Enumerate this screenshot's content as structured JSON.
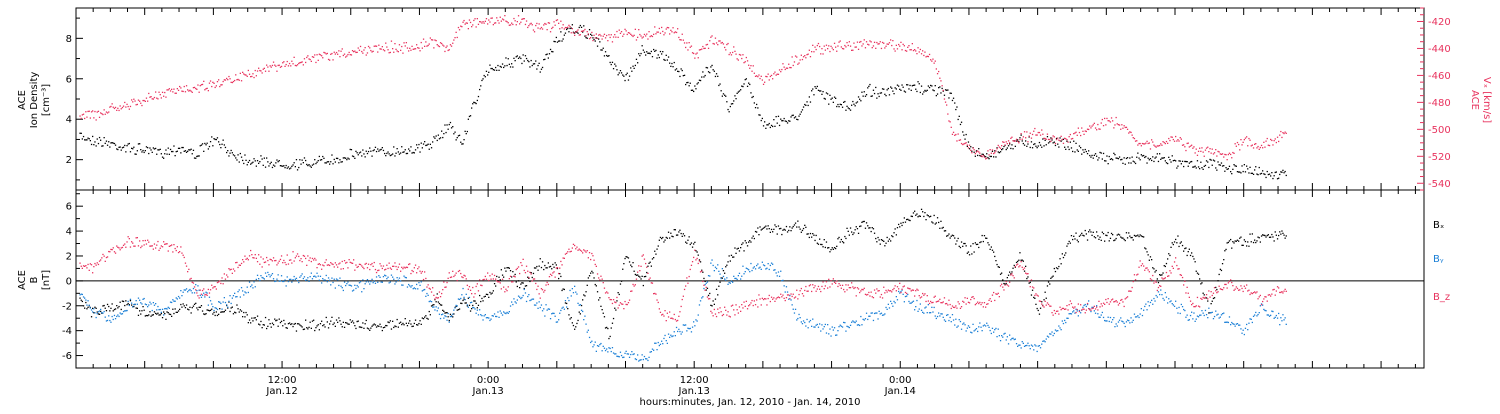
{
  "colors": {
    "black": "#000000",
    "red": "#e8335e",
    "blue": "#1a7fd6",
    "bg": "#ffffff"
  },
  "chart_data": [
    {
      "type": "scatter",
      "panel": "ion-density",
      "left_ylabel_lines": [
        "ACE",
        "Ion Density",
        "[cm⁻³]"
      ],
      "left_ylim": [
        0.5,
        9.5
      ],
      "left_yticks": [
        2,
        4,
        6,
        8
      ],
      "right_ylabel_lines": [
        "ACE",
        "Vₓ [km/s]"
      ],
      "right_ylim": [
        -545,
        -410
      ],
      "right_yticks": [
        -420,
        -440,
        -460,
        -480,
        -500,
        -520,
        -540
      ],
      "xlim_hours": [
        0,
        78.5
      ],
      "series": [
        {
          "name": "Ion Density",
          "color": "black",
          "axis": "left",
          "x": [
            0.2,
            1,
            2,
            3,
            4,
            5,
            6,
            7,
            8,
            9,
            10,
            11,
            12,
            13,
            14,
            15,
            16,
            17,
            18,
            19,
            20,
            21,
            21.7,
            22.5,
            23,
            24,
            25,
            26,
            27,
            28,
            29,
            30,
            31,
            32,
            33,
            34,
            35,
            36,
            37,
            38,
            39,
            40,
            41,
            42,
            43,
            44,
            45,
            46,
            47,
            48,
            49,
            50,
            51,
            52,
            53,
            54,
            55,
            56,
            57,
            58,
            59,
            60,
            61,
            62,
            63,
            64,
            65,
            66,
            67,
            68,
            69,
            70,
            70.5
          ],
          "y": [
            3.2,
            3.0,
            2.8,
            2.6,
            2.5,
            2.4,
            2.6,
            2.3,
            3.0,
            2.4,
            2.0,
            1.9,
            1.8,
            1.8,
            1.9,
            2.0,
            2.3,
            2.4,
            2.4,
            2.5,
            2.6,
            3.0,
            3.8,
            2.8,
            4.5,
            6.5,
            6.8,
            7.0,
            6.5,
            8.0,
            8.5,
            8.2,
            7.0,
            6.0,
            7.5,
            7.2,
            6.5,
            5.5,
            6.8,
            4.5,
            6.0,
            3.8,
            3.9,
            4.2,
            5.5,
            5.0,
            4.5,
            5.5,
            5.3,
            5.5,
            5.6,
            5.5,
            5.2,
            2.5,
            2.2,
            2.6,
            3.0,
            2.8,
            3.0,
            2.7,
            2.3,
            2.1,
            2.0,
            2.2,
            2.1,
            1.9,
            1.8,
            1.8,
            1.6,
            1.5,
            1.4,
            1.3,
            1.3
          ]
        },
        {
          "name": "Vx",
          "color": "red",
          "axis": "right",
          "x": [
            0.2,
            1,
            2,
            3,
            4,
            5,
            6,
            7,
            8,
            9,
            10,
            11,
            12,
            13,
            14,
            15,
            16,
            17,
            18,
            19,
            20,
            21,
            21.7,
            22.5,
            23,
            24,
            25,
            26,
            27,
            28,
            29,
            30,
            31,
            32,
            33,
            34,
            35,
            36,
            37,
            38,
            39,
            40,
            41,
            42,
            43,
            44,
            45,
            46,
            47,
            48,
            49,
            50,
            51,
            52,
            53,
            54,
            55,
            56,
            57,
            58,
            59,
            60,
            61,
            62,
            63,
            64,
            65,
            66,
            67,
            68,
            69,
            70,
            70.5
          ],
          "y": [
            -487,
            -490,
            -485,
            -482,
            -478,
            -474,
            -470,
            -468,
            -466,
            -462,
            -458,
            -455,
            -452,
            -450,
            -447,
            -445,
            -442,
            -440,
            -438,
            -440,
            -437,
            -435,
            -440,
            -420,
            -421,
            -420,
            -419,
            -420,
            -424,
            -422,
            -426,
            -430,
            -431,
            -429,
            -430,
            -426,
            -428,
            -445,
            -434,
            -440,
            -448,
            -465,
            -455,
            -448,
            -440,
            -438,
            -437,
            -436,
            -437,
            -438,
            -440,
            -450,
            -500,
            -515,
            -520,
            -510,
            -505,
            -503,
            -507,
            -505,
            -500,
            -493,
            -497,
            -510,
            -512,
            -506,
            -515,
            -517,
            -520,
            -508,
            -512,
            -505,
            -500
          ]
        }
      ]
    },
    {
      "type": "scatter",
      "panel": "imf-b",
      "left_ylabel_lines": [
        "ACE",
        "B",
        "[nT]"
      ],
      "left_ylim": [
        -7,
        7.3
      ],
      "left_yticks": [
        6,
        4,
        2,
        0,
        -2,
        -4,
        -6
      ],
      "zero_line": true,
      "xlim_hours": [
        0,
        78.5
      ],
      "series": [
        {
          "name": "Bₓ",
          "color": "black",
          "x": [
            0.2,
            1,
            2,
            3,
            4,
            5,
            6,
            7,
            8,
            9,
            10,
            11,
            12,
            13,
            14,
            15,
            16,
            17,
            18,
            19,
            20,
            21,
            21.7,
            22.5,
            23,
            24,
            25,
            26,
            27,
            28,
            29,
            30,
            31,
            32,
            33,
            34,
            35,
            36,
            37,
            38,
            39,
            40,
            41,
            42,
            43,
            44,
            45,
            46,
            47,
            48,
            49,
            50,
            51,
            52,
            53,
            54,
            55,
            56,
            57,
            58,
            59,
            60,
            61,
            62,
            63,
            64,
            65,
            66,
            67,
            68,
            69,
            70,
            70.5
          ],
          "y": [
            -1.5,
            -2.5,
            -2.0,
            -1.8,
            -2.5,
            -2.8,
            -2.2,
            -2.0,
            -2.6,
            -2.0,
            -3.0,
            -3.3,
            -3.4,
            -3.6,
            -3.5,
            -3.3,
            -3.4,
            -3.6,
            -3.5,
            -3.4,
            -3.5,
            -1.5,
            -3.0,
            -1.5,
            -2.0,
            -1.0,
            1.0,
            -0.5,
            1.5,
            1.0,
            -4.0,
            1.0,
            -4.5,
            2.0,
            0.0,
            3.5,
            4.0,
            3.0,
            -2.0,
            2.0,
            3.0,
            4.5,
            4.0,
            4.5,
            3.5,
            2.5,
            4.0,
            4.5,
            3.0,
            4.5,
            5.5,
            5.0,
            3.5,
            2.5,
            3.5,
            0.0,
            2.0,
            -2.5,
            1.0,
            3.5,
            3.8,
            3.6,
            3.5,
            3.7,
            0.0,
            3.5,
            2.0,
            -2.5,
            3.0,
            3.2,
            3.5,
            3.6,
            3.8
          ]
        },
        {
          "name": "Bᵧ",
          "color": "blue",
          "x": [
            0.2,
            1,
            2,
            3,
            4,
            5,
            6,
            7,
            8,
            9,
            10,
            11,
            12,
            13,
            14,
            15,
            16,
            17,
            18,
            19,
            20,
            21,
            21.7,
            22.5,
            23,
            24,
            25,
            26,
            27,
            28,
            29,
            30,
            31,
            32,
            33,
            34,
            35,
            36,
            37,
            38,
            39,
            40,
            41,
            42,
            43,
            44,
            45,
            46,
            47,
            48,
            49,
            50,
            51,
            52,
            53,
            54,
            55,
            56,
            57,
            58,
            59,
            60,
            61,
            62,
            63,
            64,
            65,
            66,
            67,
            68,
            69,
            70,
            70.5
          ],
          "y": [
            -1.0,
            -2.5,
            -3.0,
            -2.0,
            -1.5,
            -2.5,
            -1.0,
            -0.5,
            -2.0,
            -1.5,
            -0.5,
            0.5,
            0.0,
            0.2,
            0.3,
            0.0,
            -0.5,
            -0.2,
            0.3,
            0.0,
            -0.3,
            -2.5,
            -3.0,
            -1.0,
            -2.0,
            -3.0,
            -2.5,
            -1.0,
            -2.0,
            -3.0,
            -0.5,
            -5.0,
            -5.5,
            -6.0,
            -6.2,
            -5.0,
            -4.0,
            -3.5,
            1.5,
            0.0,
            1.0,
            1.5,
            0.5,
            -3.0,
            -3.5,
            -4.0,
            -3.5,
            -3.0,
            -2.5,
            -1.0,
            -2.0,
            -2.5,
            -3.0,
            -4.0,
            -3.5,
            -4.5,
            -5.0,
            -5.5,
            -4.0,
            -2.5,
            -2.0,
            -3.0,
            -3.5,
            -2.5,
            -1.0,
            -2.0,
            -3.0,
            -2.5,
            -3.0,
            -4.0,
            -2.0,
            -3.0,
            -3.2
          ]
        },
        {
          "name": "B_z",
          "color": "red",
          "x": [
            0.2,
            1,
            2,
            3,
            4,
            5,
            6,
            7,
            8,
            9,
            10,
            11,
            12,
            13,
            14,
            15,
            16,
            17,
            18,
            19,
            20,
            21,
            21.7,
            22.5,
            23,
            24,
            25,
            26,
            27,
            28,
            29,
            30,
            31,
            32,
            33,
            34,
            35,
            36,
            37,
            38,
            39,
            40,
            41,
            42,
            43,
            44,
            45,
            46,
            47,
            48,
            49,
            50,
            51,
            52,
            53,
            54,
            55,
            56,
            57,
            58,
            59,
            60,
            61,
            62,
            63,
            64,
            65,
            66,
            67,
            68,
            69,
            70,
            70.5
          ],
          "y": [
            1.5,
            1.0,
            2.5,
            3.2,
            3.0,
            2.8,
            2.7,
            -1.0,
            -0.5,
            0.8,
            2.2,
            1.5,
            1.8,
            2.0,
            1.5,
            1.3,
            1.4,
            1.2,
            1.0,
            1.2,
            1.0,
            -1.5,
            0.5,
            0.5,
            -1.0,
            0.5,
            -0.5,
            1.5,
            -1.0,
            1.0,
            3.0,
            2.0,
            -1.5,
            -2.0,
            2.0,
            -2.5,
            -3.0,
            2.5,
            -2.5,
            -2.5,
            -1.8,
            -1.5,
            -1.3,
            -1.0,
            -0.5,
            0.0,
            -0.5,
            -1.0,
            -0.8,
            -0.5,
            -1.0,
            -1.5,
            -2.0,
            -1.5,
            -1.8,
            -0.5,
            1.5,
            -1.5,
            -2.5,
            -2.0,
            -2.2,
            -1.5,
            -1.8,
            1.5,
            -0.5,
            1.5,
            -2.0,
            -1.0,
            -0.3,
            -0.5,
            -1.5,
            -0.8,
            -0.5
          ]
        }
      ]
    }
  ],
  "x_axis": {
    "ticks": [
      {
        "hours": 12,
        "line1": "12:00",
        "line2": "Jan.12"
      },
      {
        "hours": 24,
        "line1": "0:00",
        "line2": "Jan.13"
      },
      {
        "hours": 36,
        "line1": "12:00",
        "line2": "Jan.13"
      },
      {
        "hours": 48,
        "line1": "0:00",
        "line2": "Jan.14"
      }
    ],
    "minor_step_hours": 1,
    "major_step_hours": 4,
    "label": "hours:minutes, Jan. 12, 2010 - Jan. 14, 2010"
  },
  "legend": [
    {
      "label": "Bₓ",
      "color": "black"
    },
    {
      "label": "Bᵧ",
      "color": "blue"
    },
    {
      "label": "B_z",
      "color": "red"
    }
  ]
}
